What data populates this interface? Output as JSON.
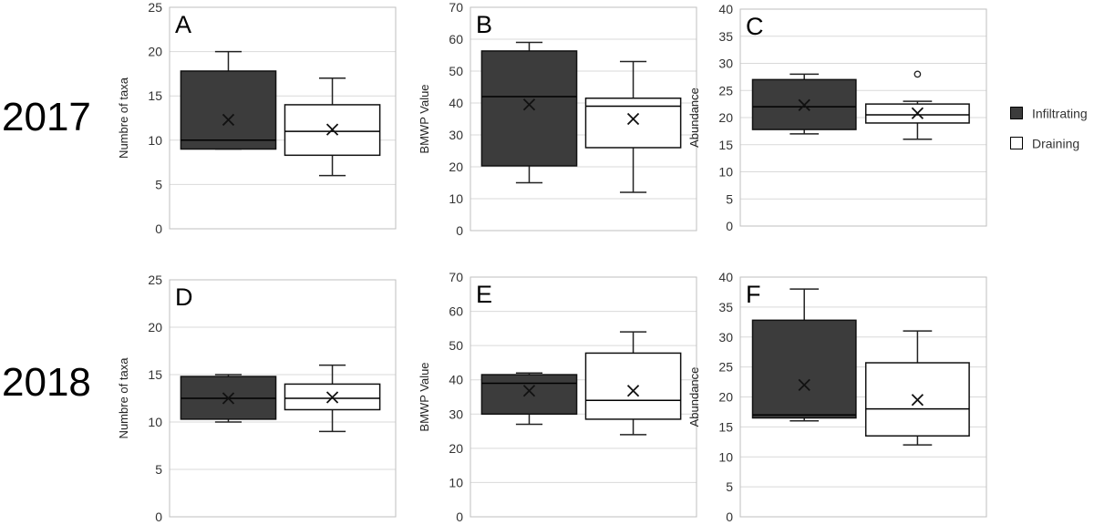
{
  "row_labels": {
    "top": "2017",
    "bottom": "2018"
  },
  "legend": [
    {
      "label": "Infiltrating",
      "color": "#3c3c3c"
    },
    {
      "label": "Draining",
      "color": "#ffffff"
    }
  ],
  "chart_data": [
    {
      "type": "box",
      "panel_label": "A",
      "ylabel": "Numbre of taxa",
      "ylim": [
        0,
        25
      ],
      "yticks": [
        0,
        5,
        10,
        15,
        20,
        25
      ],
      "series": [
        {
          "name": "Infiltrating",
          "min": 9,
          "q1": 9,
          "median": 10,
          "q3": 17.8,
          "max": 20,
          "mean": 12.3,
          "outliers": []
        },
        {
          "name": "Draining",
          "min": 6,
          "q1": 8.3,
          "median": 11,
          "q3": 14,
          "max": 17,
          "mean": 11.2,
          "outliers": []
        }
      ]
    },
    {
      "type": "box",
      "panel_label": "B",
      "ylabel": "BMWP Value",
      "ylim": [
        0,
        70
      ],
      "yticks": [
        0,
        10,
        20,
        30,
        40,
        50,
        60,
        70
      ],
      "series": [
        {
          "name": "Infiltrating",
          "min": 15,
          "q1": 20.3,
          "median": 42,
          "q3": 56.3,
          "max": 59,
          "mean": 39.5,
          "outliers": []
        },
        {
          "name": "Draining",
          "min": 12,
          "q1": 26,
          "median": 39,
          "q3": 41.5,
          "max": 53,
          "mean": 35,
          "outliers": []
        }
      ]
    },
    {
      "type": "box",
      "panel_label": "C",
      "ylabel": "Abundance",
      "ylim": [
        0,
        40
      ],
      "yticks": [
        0,
        5,
        10,
        15,
        20,
        25,
        30,
        35,
        40
      ],
      "series": [
        {
          "name": "Infiltrating",
          "min": 17,
          "q1": 17.8,
          "median": 22,
          "q3": 27,
          "max": 28,
          "mean": 22.3,
          "outliers": []
        },
        {
          "name": "Draining",
          "min": 16,
          "q1": 19,
          "median": 20.5,
          "q3": 22.5,
          "max": 23,
          "mean": 20.8,
          "outliers": [
            28
          ]
        }
      ]
    },
    {
      "type": "box",
      "panel_label": "D",
      "ylabel": "Numbre of taxa",
      "ylim": [
        0,
        25
      ],
      "yticks": [
        0,
        5,
        10,
        15,
        20,
        25
      ],
      "series": [
        {
          "name": "Infiltrating",
          "min": 10,
          "q1": 10.3,
          "median": 12.5,
          "q3": 14.8,
          "max": 15,
          "mean": 12.5,
          "outliers": []
        },
        {
          "name": "Draining",
          "min": 9,
          "q1": 11.3,
          "median": 12.5,
          "q3": 14,
          "max": 16,
          "mean": 12.6,
          "outliers": []
        }
      ]
    },
    {
      "type": "box",
      "panel_label": "E",
      "ylabel": "BMWP Value",
      "ylim": [
        0,
        70
      ],
      "yticks": [
        0,
        10,
        20,
        30,
        40,
        50,
        60,
        70
      ],
      "series": [
        {
          "name": "Infiltrating",
          "min": 27,
          "q1": 30,
          "median": 39,
          "q3": 41.5,
          "max": 42,
          "mean": 36.8,
          "outliers": []
        },
        {
          "name": "Draining",
          "min": 24,
          "q1": 28.5,
          "median": 34,
          "q3": 47.8,
          "max": 54,
          "mean": 36.8,
          "outliers": []
        }
      ]
    },
    {
      "type": "box",
      "panel_label": "F",
      "ylabel": "Abundance",
      "ylim": [
        0,
        40
      ],
      "yticks": [
        0,
        5,
        10,
        15,
        20,
        25,
        30,
        35,
        40
      ],
      "series": [
        {
          "name": "Infiltrating",
          "min": 16,
          "q1": 16.5,
          "median": 17,
          "q3": 32.8,
          "max": 38,
          "mean": 22,
          "outliers": []
        },
        {
          "name": "Draining",
          "min": 12,
          "q1": 13.5,
          "median": 18,
          "q3": 25.7,
          "max": 31,
          "mean": 19.5,
          "outliers": []
        }
      ]
    }
  ]
}
